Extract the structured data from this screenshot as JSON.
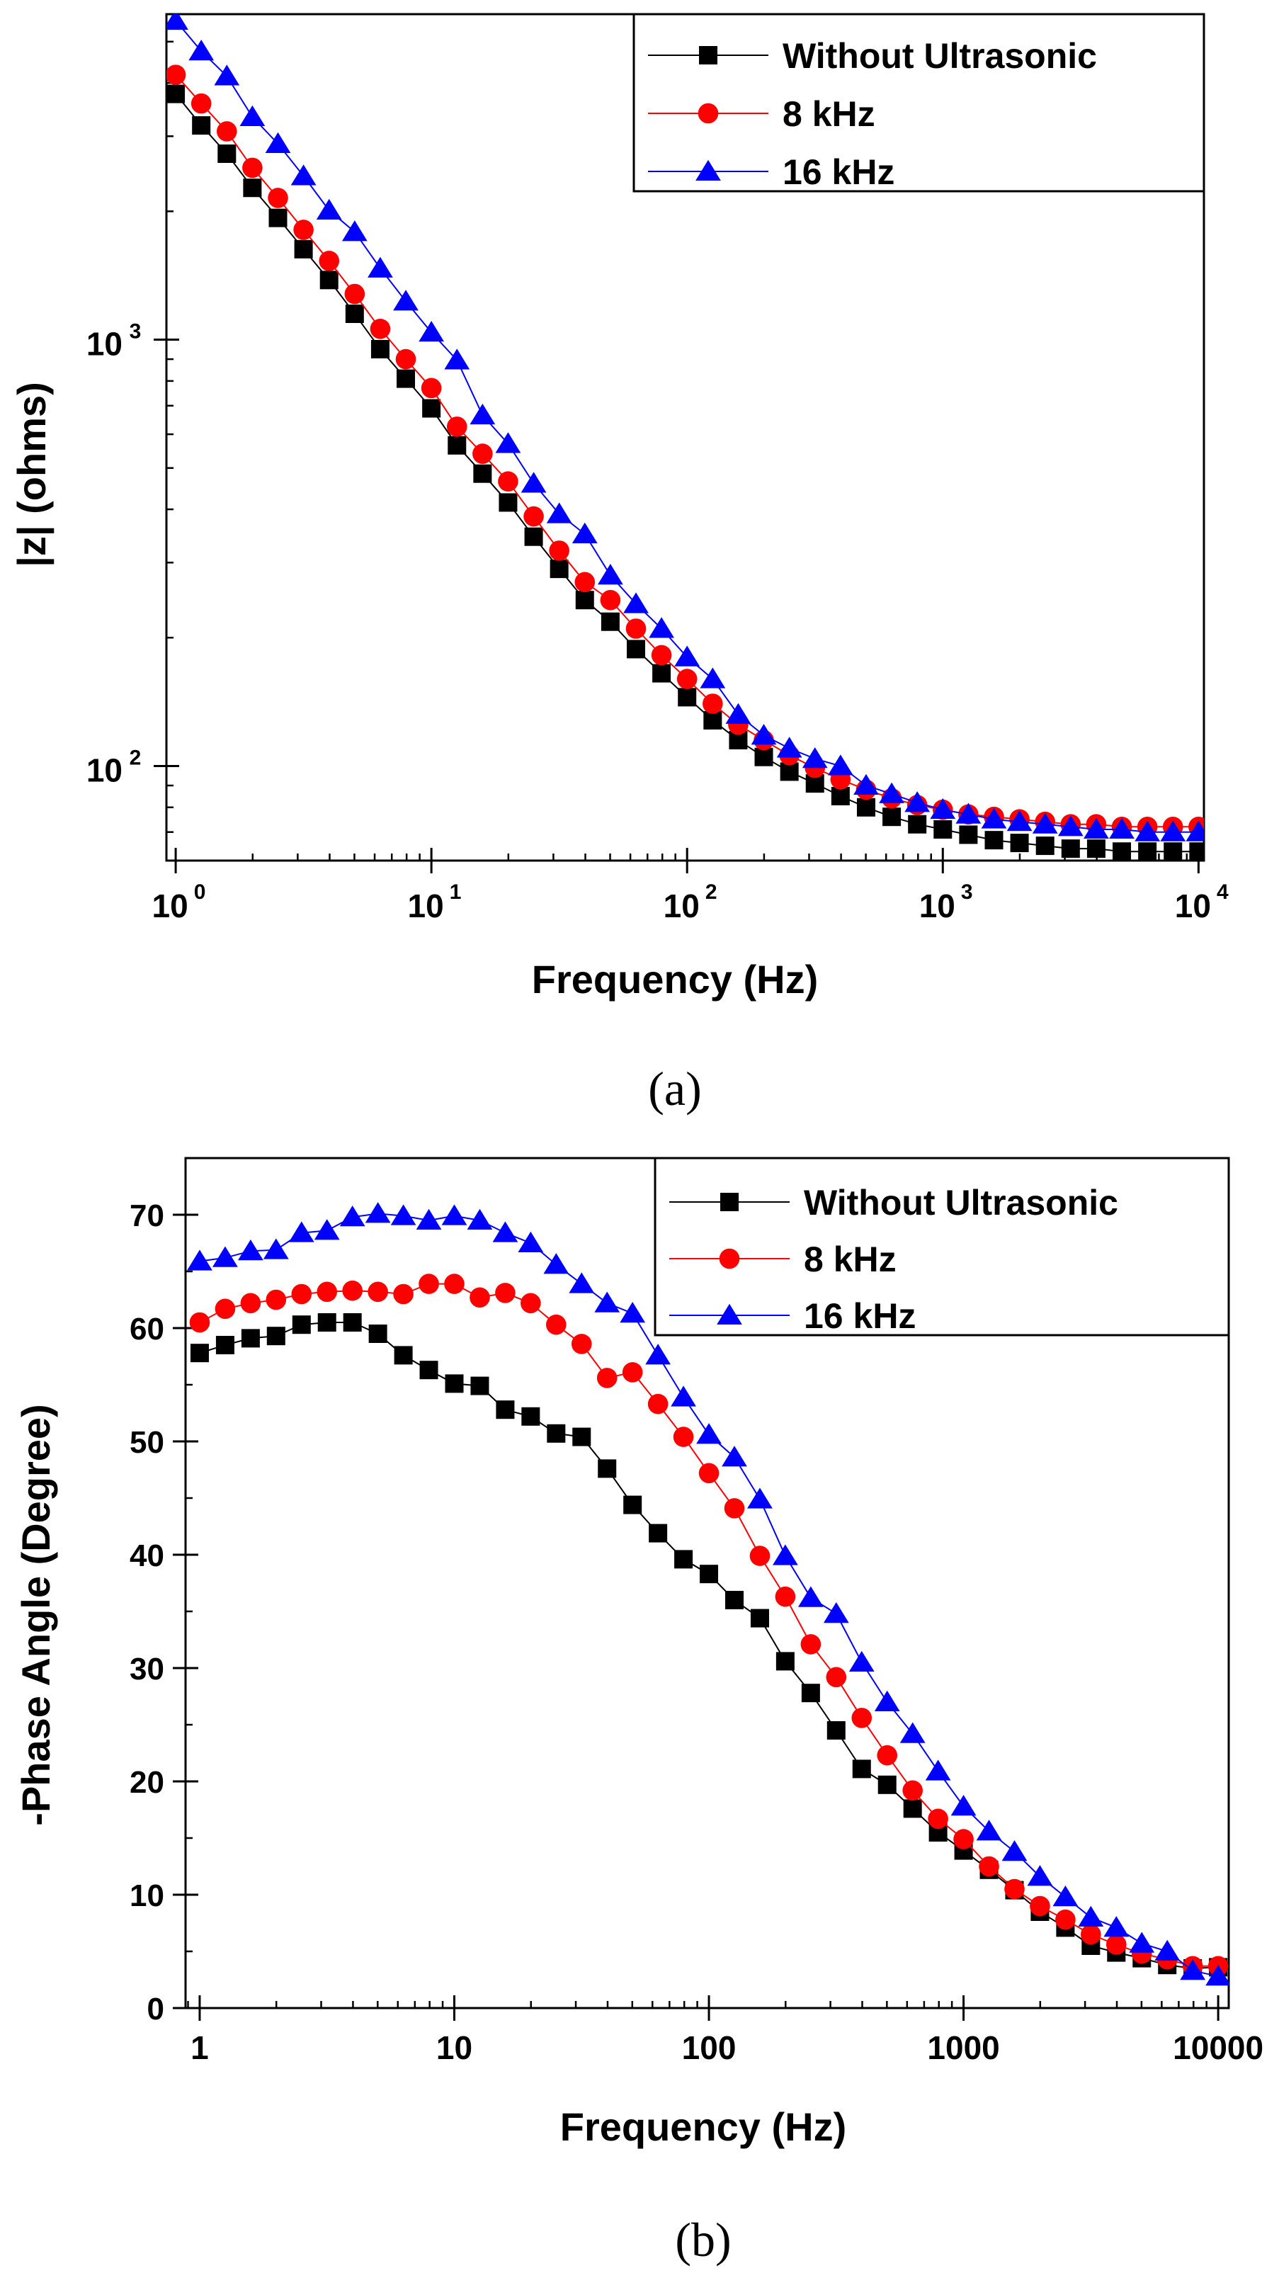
{
  "chart_data": [
    {
      "type": "line",
      "panel_label": "(a)",
      "title": "",
      "xlabel": "Frequency (Hz)",
      "ylabel": "|z| (ohms)",
      "xscale": "log",
      "yscale": "log",
      "xlim": [
        0.92,
        10500
      ],
      "ylim": [
        60,
        5800
      ],
      "x_ticks": [
        {
          "value": 1,
          "base": "10",
          "exp": "0"
        },
        {
          "value": 10,
          "base": "10",
          "exp": "1"
        },
        {
          "value": 100,
          "base": "10",
          "exp": "2"
        },
        {
          "value": 1000,
          "base": "10",
          "exp": "3"
        },
        {
          "value": 10000,
          "base": "10",
          "exp": "4"
        }
      ],
      "y_ticks": [
        {
          "value": 100,
          "base": "10",
          "exp": "2"
        },
        {
          "value": 1000,
          "base": "10",
          "exp": "3"
        }
      ],
      "grid": false,
      "legend_position": "top-right",
      "x": [
        1,
        1.259,
        1.585,
        1.995,
        2.512,
        3.162,
        3.981,
        5.012,
        6.31,
        7.943,
        10,
        12.59,
        15.85,
        19.95,
        25.12,
        31.62,
        39.81,
        50.12,
        63.1,
        79.43,
        100,
        125.9,
        158.5,
        199.5,
        251.2,
        316.2,
        398.1,
        501.2,
        631,
        794.3,
        1000,
        1259,
        1585,
        1995,
        2512,
        3162,
        3981,
        5012,
        6310,
        7943,
        10000
      ],
      "series": [
        {
          "name": "Without Ultrasonic",
          "color": "#000000",
          "marker": "square",
          "values": [
            3770,
            3180,
            2730,
            2270,
            1930,
            1630,
            1380,
            1150,
            950,
            810,
            690,
            565,
            485,
            415,
            345,
            290,
            245,
            218,
            188,
            165,
            145,
            128,
            115,
            105,
            97,
            91,
            85,
            80,
            76,
            73,
            71,
            69,
            67,
            66,
            65,
            64,
            64,
            63,
            63,
            63,
            63
          ]
        },
        {
          "name": "8 kHz",
          "color": "#ff0000",
          "marker": "circle",
          "values": [
            4180,
            3580,
            3080,
            2530,
            2150,
            1810,
            1530,
            1280,
            1060,
            900,
            770,
            625,
            540,
            465,
            385,
            320,
            270,
            245,
            210,
            182,
            160,
            140,
            125,
            115,
            106,
            99,
            93,
            88,
            84,
            81,
            79,
            77,
            76,
            75,
            74,
            73,
            73,
            72,
            72,
            72,
            72
          ]
        },
        {
          "name": "16 kHz",
          "color": "#0000ff",
          "marker": "triangle",
          "values": [
            5600,
            4750,
            4150,
            3330,
            2880,
            2420,
            2010,
            1790,
            1470,
            1230,
            1040,
            895,
            665,
            570,
            460,
            390,
            350,
            280,
            240,
            210,
            180,
            160,
            132,
            118,
            110,
            104,
            100,
            90,
            86,
            82,
            79,
            77,
            75,
            74,
            73,
            72,
            71,
            71,
            70,
            70,
            70
          ]
        }
      ]
    },
    {
      "type": "line",
      "panel_label": "(b)",
      "title": "",
      "xlabel": "Frequency (Hz)",
      "ylabel": "-Phase Angle (Degree)",
      "xscale": "log",
      "yscale": "linear",
      "xlim": [
        0.88,
        11000
      ],
      "ylim": [
        0,
        75
      ],
      "x_ticks": [
        {
          "value": 1,
          "label": "1"
        },
        {
          "value": 10,
          "label": "10"
        },
        {
          "value": 100,
          "label": "100"
        },
        {
          "value": 1000,
          "label": "1000"
        },
        {
          "value": 10000,
          "label": "10000"
        }
      ],
      "y_ticks": [
        {
          "value": 0,
          "label": "0"
        },
        {
          "value": 10,
          "label": "10"
        },
        {
          "value": 20,
          "label": "20"
        },
        {
          "value": 30,
          "label": "30"
        },
        {
          "value": 40,
          "label": "40"
        },
        {
          "value": 50,
          "label": "50"
        },
        {
          "value": 60,
          "label": "60"
        },
        {
          "value": 70,
          "label": "70"
        }
      ],
      "grid": false,
      "legend_position": "top-right",
      "x": [
        1,
        1.259,
        1.585,
        1.995,
        2.512,
        3.162,
        3.981,
        5.012,
        6.31,
        7.943,
        10,
        12.59,
        15.85,
        19.95,
        25.12,
        31.62,
        39.81,
        50.12,
        63.1,
        79.43,
        100,
        125.9,
        158.5,
        199.5,
        251.2,
        316.2,
        398.1,
        501.2,
        631,
        794.3,
        1000,
        1259,
        1585,
        1995,
        2512,
        3162,
        3981,
        5012,
        6310,
        7943,
        10000
      ],
      "series": [
        {
          "name": "Without Ultrasonic",
          "color": "#000000",
          "marker": "square",
          "values": [
            57.8,
            58.5,
            59.1,
            59.3,
            60.3,
            60.5,
            60.5,
            59.5,
            57.6,
            56.3,
            55.1,
            54.9,
            52.8,
            52.2,
            50.7,
            50.4,
            47.6,
            44.4,
            41.9,
            39.6,
            38.3,
            36.0,
            34.4,
            30.6,
            27.8,
            24.5,
            21.1,
            19.7,
            17.6,
            15.5,
            13.9,
            12.2,
            10.4,
            8.5,
            7.1,
            5.5,
            4.9,
            4.4,
            3.8,
            3.5,
            3.6
          ]
        },
        {
          "name": "8 kHz",
          "color": "#ff0000",
          "marker": "circle",
          "values": [
            60.5,
            61.7,
            62.2,
            62.5,
            63.0,
            63.2,
            63.3,
            63.2,
            63.0,
            63.9,
            63.9,
            62.7,
            63.1,
            62.2,
            60.3,
            58.6,
            55.6,
            56.1,
            53.3,
            50.4,
            47.2,
            44.1,
            39.9,
            36.3,
            32.1,
            29.2,
            25.6,
            22.3,
            19.2,
            16.7,
            14.9,
            12.5,
            10.5,
            9.0,
            7.8,
            6.5,
            5.6,
            4.8,
            4.3,
            3.7,
            3.7
          ]
        },
        {
          "name": "16 kHz",
          "color": "#0000ff",
          "marker": "triangle",
          "values": [
            65.9,
            66.2,
            66.8,
            66.9,
            68.4,
            68.6,
            69.8,
            70.1,
            69.9,
            69.5,
            69.9,
            69.5,
            68.4,
            67.5,
            65.6,
            63.9,
            62.2,
            61.3,
            57.6,
            53.9,
            50.6,
            48.6,
            44.9,
            39.9,
            36.2,
            34.8,
            30.5,
            27.0,
            24.2,
            20.9,
            17.8,
            15.6,
            13.8,
            11.6,
            9.8,
            8.0,
            7.1,
            5.7,
            5.0,
            3.3,
            2.8
          ]
        }
      ]
    }
  ]
}
